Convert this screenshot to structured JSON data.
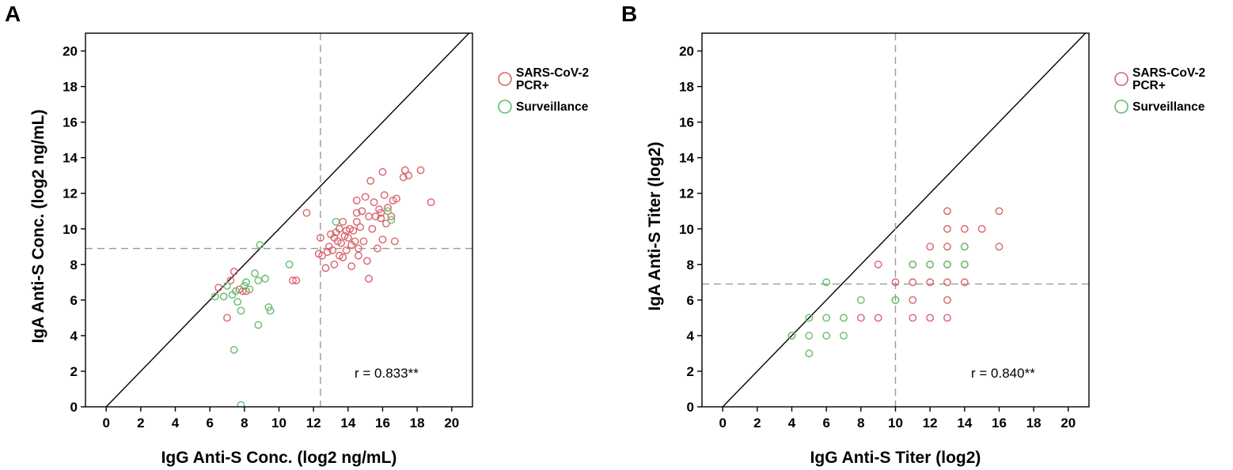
{
  "panels": [
    {
      "letter": "A",
      "chart_data": {
        "type": "scatter",
        "xlabel": "IgG Anti-S Conc. (log2 ng/mL)",
        "ylabel": "IgA Anti-S Conc. (log2 ng/mL)",
        "xlim": [
          -1.2,
          21.2
        ],
        "ylim": [
          0,
          21
        ],
        "xticks": [
          "0",
          "2",
          "4",
          "6",
          "8",
          "10",
          "12",
          "14",
          "16",
          "18",
          "20"
        ],
        "yticks": [
          "0",
          "2",
          "4",
          "6",
          "8",
          "10",
          "12",
          "14",
          "16",
          "18",
          "20"
        ],
        "xcutoff": 12.4,
        "ycutoff": 8.9,
        "identity_line": true,
        "annotation": "r = 0.833**",
        "legend": [
          {
            "label": [
              "SARS-CoV-2",
              "PCR+"
            ],
            "color": "#d9636b"
          },
          {
            "label": [
              "Surveillance"
            ],
            "color": "#64bd6e"
          }
        ],
        "series": [
          {
            "name": "SARS-CoV-2 PCR+",
            "color": "#d9636b",
            "points": [
              [
                6.5,
                6.7
              ],
              [
                7.2,
                7.1
              ],
              [
                7.4,
                7.6
              ],
              [
                7.0,
                5.0
              ],
              [
                7.7,
                6.6
              ],
              [
                7.9,
                6.5
              ],
              [
                8.1,
                6.5
              ],
              [
                11.0,
                7.1
              ],
              [
                10.8,
                7.1
              ],
              [
                11.6,
                10.9
              ],
              [
                12.4,
                9.5
              ],
              [
                12.3,
                8.6
              ],
              [
                12.5,
                8.5
              ],
              [
                12.7,
                7.8
              ],
              [
                12.8,
                8.7
              ],
              [
                12.9,
                9.0
              ],
              [
                13.0,
                9.7
              ],
              [
                13.1,
                8.8
              ],
              [
                13.2,
                8.0
              ],
              [
                13.2,
                9.5
              ],
              [
                13.3,
                9.8
              ],
              [
                13.4,
                9.3
              ],
              [
                13.5,
                8.5
              ],
              [
                13.5,
                10.0
              ],
              [
                13.6,
                9.2
              ],
              [
                13.7,
                8.4
              ],
              [
                13.7,
                10.4
              ],
              [
                13.8,
                9.6
              ],
              [
                13.9,
                8.8
              ],
              [
                14.0,
                9.5
              ],
              [
                14.1,
                10.0
              ],
              [
                14.2,
                9.1
              ],
              [
                14.2,
                7.9
              ],
              [
                14.3,
                9.9
              ],
              [
                14.4,
                9.3
              ],
              [
                14.5,
                11.6
              ],
              [
                14.5,
                10.9
              ],
              [
                14.5,
                10.4
              ],
              [
                14.6,
                8.5
              ],
              [
                14.7,
                10.1
              ],
              [
                14.8,
                11.0
              ],
              [
                14.9,
                9.3
              ],
              [
                15.0,
                11.8
              ],
              [
                15.1,
                8.2
              ],
              [
                15.2,
                10.7
              ],
              [
                15.2,
                7.2
              ],
              [
                15.3,
                12.7
              ],
              [
                15.4,
                10.0
              ],
              [
                15.5,
                11.5
              ],
              [
                15.6,
                10.7
              ],
              [
                15.7,
                8.9
              ],
              [
                15.8,
                11.1
              ],
              [
                15.9,
                10.6
              ],
              [
                16.0,
                13.2
              ],
              [
                16.0,
                9.4
              ],
              [
                16.1,
                11.9
              ],
              [
                16.2,
                10.3
              ],
              [
                16.3,
                11.2
              ],
              [
                16.5,
                10.7
              ],
              [
                16.6,
                11.6
              ],
              [
                16.7,
                9.3
              ],
              [
                16.8,
                11.7
              ],
              [
                17.2,
                12.9
              ],
              [
                17.3,
                13.3
              ],
              [
                17.5,
                13.0
              ],
              [
                18.2,
                13.3
              ],
              [
                18.8,
                11.5
              ],
              [
                15.9,
                10.9
              ],
              [
                14.6,
                8.9
              ],
              [
                13.9,
                9.9
              ]
            ]
          },
          {
            "name": "Surveillance",
            "color": "#64bd6e",
            "points": [
              [
                6.3,
                6.2
              ],
              [
                6.8,
                6.2
              ],
              [
                7.0,
                6.8
              ],
              [
                7.3,
                6.3
              ],
              [
                7.5,
                6.5
              ],
              [
                7.6,
                5.9
              ],
              [
                7.8,
                5.4
              ],
              [
                8.0,
                6.8
              ],
              [
                8.1,
                7.0
              ],
              [
                8.3,
                6.6
              ],
              [
                8.6,
                7.5
              ],
              [
                8.8,
                7.1
              ],
              [
                8.9,
                9.1
              ],
              [
                8.8,
                4.6
              ],
              [
                9.2,
                7.2
              ],
              [
                9.4,
                5.6
              ],
              [
                9.5,
                5.4
              ],
              [
                10.6,
                8.0
              ],
              [
                7.4,
                3.2
              ],
              [
                7.8,
                0.1
              ],
              [
                13.3,
                10.4
              ],
              [
                16.3,
                11.0
              ],
              [
                16.5,
                10.5
              ]
            ]
          }
        ]
      }
    },
    {
      "letter": "B",
      "chart_data": {
        "type": "scatter",
        "xlabel": "IgG Anti-S Titer (log2)",
        "ylabel": "IgA Anti-S Titer (log2)",
        "xlim": [
          -1.2,
          21.2
        ],
        "ylim": [
          0,
          21
        ],
        "xticks": [
          "0",
          "2",
          "4",
          "6",
          "8",
          "10",
          "12",
          "14",
          "16",
          "18",
          "20"
        ],
        "yticks": [
          "0",
          "2",
          "4",
          "6",
          "8",
          "10",
          "12",
          "14",
          "16",
          "18",
          "20"
        ],
        "xcutoff": 10,
        "ycutoff": 6.9,
        "identity_line": true,
        "annotation": "r = 0.840**",
        "legend": [
          {
            "label": [
              "SARS-CoV-2",
              "PCR+"
            ],
            "color": "#d9636b"
          },
          {
            "label": [
              "Surveillance"
            ],
            "color": "#64bd6e"
          }
        ],
        "series": [
          {
            "name": "SARS-CoV-2 PCR+",
            "color": "#d9636b",
            "points": [
              [
                8,
                5
              ],
              [
                9,
                5
              ],
              [
                9,
                8
              ],
              [
                10,
                7
              ],
              [
                11,
                5
              ],
              [
                11,
                6
              ],
              [
                11,
                7
              ],
              [
                11,
                8
              ],
              [
                12,
                5
              ],
              [
                12,
                7
              ],
              [
                12,
                8
              ],
              [
                12,
                9
              ],
              [
                13,
                5
              ],
              [
                13,
                6
              ],
              [
                13,
                7
              ],
              [
                13,
                8
              ],
              [
                13,
                9
              ],
              [
                13,
                10
              ],
              [
                13,
                11
              ],
              [
                14,
                7
              ],
              [
                14,
                8
              ],
              [
                14,
                9
              ],
              [
                14,
                10
              ],
              [
                15,
                10
              ],
              [
                16,
                9
              ],
              [
                16,
                11
              ],
              [
                4,
                4
              ],
              [
                10,
                6
              ]
            ]
          },
          {
            "name": "Surveillance",
            "color": "#64bd6e",
            "points": [
              [
                4,
                4
              ],
              [
                5,
                3
              ],
              [
                5,
                4
              ],
              [
                5,
                5
              ],
              [
                6,
                4
              ],
              [
                6,
                5
              ],
              [
                6,
                7
              ],
              [
                7,
                4
              ],
              [
                7,
                5
              ],
              [
                8,
                6
              ],
              [
                10,
                6
              ],
              [
                11,
                8
              ],
              [
                12,
                8
              ],
              [
                13,
                8
              ],
              [
                14,
                9
              ],
              [
                14,
                8
              ]
            ]
          }
        ]
      }
    }
  ]
}
